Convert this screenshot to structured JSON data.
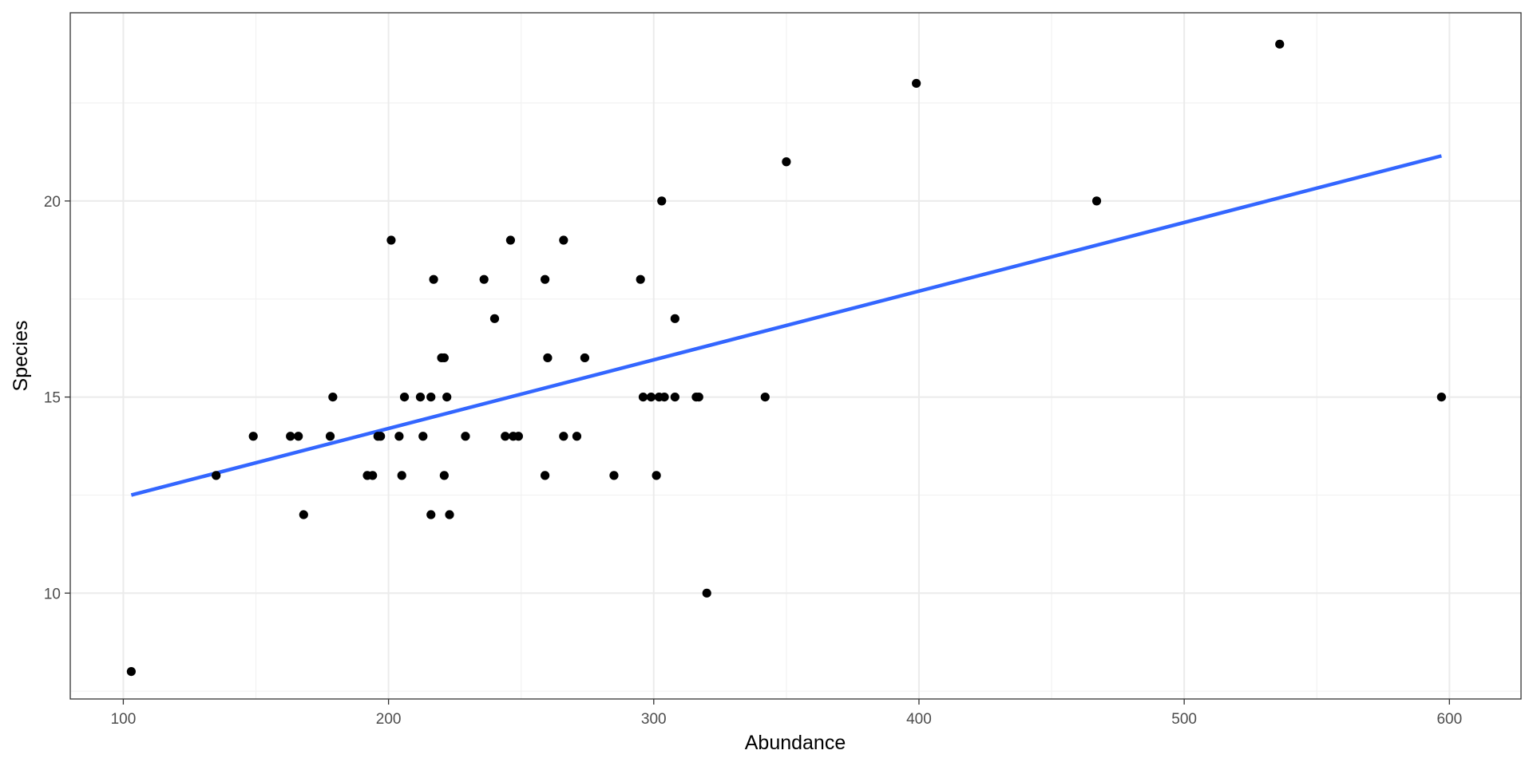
{
  "chart_data": {
    "type": "scatter",
    "xlabel": "Abundance",
    "ylabel": "Species",
    "xlim": [
      80,
      627
    ],
    "ylim": [
      7.3,
      24.8
    ],
    "x_ticks": [
      100,
      200,
      300,
      400,
      500,
      600
    ],
    "x_tick_labels": [
      "100",
      "200",
      "300",
      "400",
      "500",
      "600"
    ],
    "y_ticks": [
      10,
      15,
      20
    ],
    "y_tick_labels": [
      "10",
      "15",
      "20"
    ],
    "grid": true,
    "theme": "bw",
    "points": [
      {
        "x": 103,
        "y": 8
      },
      {
        "x": 135,
        "y": 13
      },
      {
        "x": 149,
        "y": 14
      },
      {
        "x": 163,
        "y": 14
      },
      {
        "x": 166,
        "y": 14
      },
      {
        "x": 168,
        "y": 12
      },
      {
        "x": 178,
        "y": 14
      },
      {
        "x": 179,
        "y": 15
      },
      {
        "x": 192,
        "y": 13
      },
      {
        "x": 194,
        "y": 13
      },
      {
        "x": 196,
        "y": 14
      },
      {
        "x": 197,
        "y": 14
      },
      {
        "x": 201,
        "y": 19
      },
      {
        "x": 204,
        "y": 14
      },
      {
        "x": 205,
        "y": 13
      },
      {
        "x": 206,
        "y": 15
      },
      {
        "x": 212,
        "y": 15
      },
      {
        "x": 213,
        "y": 14
      },
      {
        "x": 216,
        "y": 15
      },
      {
        "x": 216,
        "y": 12
      },
      {
        "x": 217,
        "y": 18
      },
      {
        "x": 220,
        "y": 16
      },
      {
        "x": 221,
        "y": 16
      },
      {
        "x": 221,
        "y": 13
      },
      {
        "x": 222,
        "y": 15
      },
      {
        "x": 223,
        "y": 12
      },
      {
        "x": 229,
        "y": 14
      },
      {
        "x": 236,
        "y": 18
      },
      {
        "x": 240,
        "y": 17
      },
      {
        "x": 244,
        "y": 14
      },
      {
        "x": 246,
        "y": 19
      },
      {
        "x": 247,
        "y": 14
      },
      {
        "x": 249,
        "y": 14
      },
      {
        "x": 259,
        "y": 18
      },
      {
        "x": 259,
        "y": 13
      },
      {
        "x": 260,
        "y": 16
      },
      {
        "x": 266,
        "y": 19
      },
      {
        "x": 266,
        "y": 14
      },
      {
        "x": 271,
        "y": 14
      },
      {
        "x": 274,
        "y": 16
      },
      {
        "x": 285,
        "y": 13
      },
      {
        "x": 295,
        "y": 18
      },
      {
        "x": 296,
        "y": 15
      },
      {
        "x": 299,
        "y": 15
      },
      {
        "x": 301,
        "y": 13
      },
      {
        "x": 302,
        "y": 15
      },
      {
        "x": 303,
        "y": 20
      },
      {
        "x": 304,
        "y": 15
      },
      {
        "x": 308,
        "y": 17
      },
      {
        "x": 308,
        "y": 15
      },
      {
        "x": 316,
        "y": 15
      },
      {
        "x": 317,
        "y": 15
      },
      {
        "x": 320,
        "y": 10
      },
      {
        "x": 342,
        "y": 15
      },
      {
        "x": 350,
        "y": 21
      },
      {
        "x": 399,
        "y": 23
      },
      {
        "x": 467,
        "y": 20
      },
      {
        "x": 536,
        "y": 24
      },
      {
        "x": 597,
        "y": 15
      }
    ],
    "point_color": "#000000",
    "trend_line": {
      "method": "linear",
      "x": [
        103,
        597
      ],
      "y": [
        12.5,
        21.15
      ],
      "color": "#3366FF"
    }
  }
}
